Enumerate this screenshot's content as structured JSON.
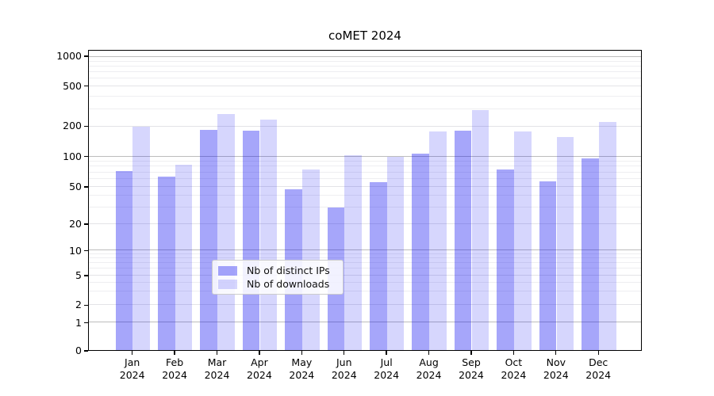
{
  "title": "coMET 2024",
  "chart_data": {
    "type": "bar",
    "title": "coMET 2024",
    "y_scale": "asinh-log",
    "y_ticks": [
      0,
      1,
      2,
      5,
      10,
      20,
      50,
      100,
      200,
      500,
      1000
    ],
    "ylim": [
      0,
      1160
    ],
    "grid": "both",
    "legend_position": "lower center",
    "months": [
      "Jan",
      "Feb",
      "Mar",
      "Apr",
      "May",
      "Jun",
      "Jul",
      "Aug",
      "Sep",
      "Oct",
      "Nov",
      "Dec"
    ],
    "year_label": "2024",
    "series": [
      {
        "name": "Nb of distinct IPs",
        "color": "rgba(0,0,240,0.35)",
        "values": [
          72,
          64,
          187,
          184,
          47,
          30,
          56,
          108,
          183,
          75,
          57,
          96
        ]
      },
      {
        "name": "Nb of downloads",
        "color": "rgba(0,0,240,0.16)",
        "values": [
          200,
          84,
          265,
          235,
          75,
          104,
          100,
          178,
          290,
          180,
          157,
          222
        ]
      }
    ]
  }
}
